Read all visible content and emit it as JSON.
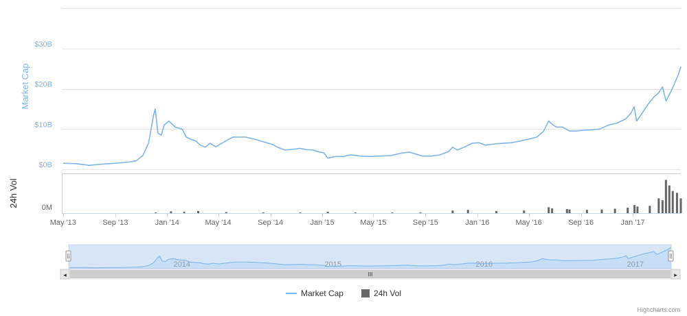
{
  "chart_data": {
    "type": "line",
    "colors": {
      "market_cap": "#7cb5ec",
      "volume": "#666666",
      "navigator_fill": "#d6e6f7",
      "grid": "#e6e6e6"
    },
    "market_cap": {
      "name": "Market Cap",
      "axis_label": "Market Cap",
      "unit": "USD billions",
      "y_ticks": [
        "$0B",
        "$10B",
        "$20B",
        "$30B"
      ],
      "y_tick_values": [
        0,
        10,
        20,
        30
      ],
      "ylim": [
        -0.5,
        40
      ],
      "x": [
        "2013-05-01",
        "2013-06-01",
        "2013-07-01",
        "2013-08-01",
        "2013-09-01",
        "2013-10-01",
        "2013-10-20",
        "2013-11-05",
        "2013-11-18",
        "2013-11-30",
        "2013-12-04",
        "2013-12-10",
        "2013-12-18",
        "2013-12-25",
        "2014-01-05",
        "2014-01-20",
        "2014-02-05",
        "2014-02-15",
        "2014-02-25",
        "2014-03-10",
        "2014-03-20",
        "2014-04-01",
        "2014-04-12",
        "2014-04-25",
        "2014-05-10",
        "2014-05-25",
        "2014-06-05",
        "2014-06-20",
        "2014-07-05",
        "2014-07-25",
        "2014-08-10",
        "2014-08-20",
        "2014-09-05",
        "2014-09-20",
        "2014-10-05",
        "2014-10-25",
        "2014-11-10",
        "2014-11-25",
        "2014-12-10",
        "2014-12-25",
        "2015-01-05",
        "2015-01-14",
        "2015-02-01",
        "2015-02-20",
        "2015-03-10",
        "2015-04-01",
        "2015-04-20",
        "2015-05-15",
        "2015-06-10",
        "2015-07-05",
        "2015-07-25",
        "2015-08-15",
        "2015-08-25",
        "2015-09-15",
        "2015-10-05",
        "2015-10-25",
        "2015-11-04",
        "2015-11-15",
        "2015-12-01",
        "2015-12-20",
        "2016-01-05",
        "2016-01-20",
        "2016-02-10",
        "2016-03-01",
        "2016-03-20",
        "2016-04-10",
        "2016-05-01",
        "2016-05-20",
        "2016-06-05",
        "2016-06-17",
        "2016-06-25",
        "2016-07-05",
        "2016-07-20",
        "2016-08-05",
        "2016-08-20",
        "2016-09-05",
        "2016-09-25",
        "2016-10-15",
        "2016-11-05",
        "2016-11-25",
        "2016-12-15",
        "2016-12-28",
        "2017-01-04",
        "2017-01-10",
        "2017-01-20",
        "2017-02-05",
        "2017-02-20",
        "2017-03-03",
        "2017-03-12",
        "2017-03-20",
        "2017-03-28",
        "2017-04-08",
        "2017-04-18",
        "2017-04-24"
      ],
      "values": [
        1.5,
        1.4,
        1.0,
        1.3,
        1.5,
        1.8,
        2.1,
        3.5,
        6.5,
        13.5,
        15.0,
        9.0,
        8.5,
        11.0,
        12.0,
        10.5,
        10.0,
        8.0,
        7.5,
        7.0,
        6.0,
        5.5,
        6.5,
        5.6,
        6.5,
        7.4,
        8.0,
        8.0,
        8.0,
        7.5,
        7.0,
        6.7,
        6.2,
        5.4,
        4.8,
        5.0,
        5.2,
        4.9,
        4.8,
        4.3,
        4.1,
        2.8,
        3.2,
        3.2,
        3.6,
        3.3,
        3.2,
        3.3,
        3.4,
        4.0,
        4.3,
        3.6,
        3.3,
        3.3,
        3.6,
        4.4,
        5.5,
        4.8,
        5.5,
        6.5,
        6.6,
        6.0,
        6.3,
        6.5,
        6.6,
        7.0,
        7.5,
        8.0,
        9.5,
        12.0,
        11.2,
        10.5,
        10.5,
        9.5,
        9.5,
        9.7,
        9.8,
        10.0,
        11.0,
        11.5,
        12.5,
        14.0,
        15.5,
        12.0,
        13.5,
        16.0,
        18.0,
        19.0,
        20.5,
        17.0,
        18.5,
        21.0,
        23.5,
        25.5
      ]
    },
    "volume": {
      "name": "24h Vol",
      "axis_label": "24h Vol",
      "y_ticks": [
        "0M"
      ],
      "x": [
        "2013-12-05",
        "2014-01-10",
        "2014-02-10",
        "2014-03-15",
        "2014-05-20",
        "2014-08-15",
        "2014-11-10",
        "2015-01-14",
        "2015-03-20",
        "2015-06-15",
        "2015-08-20",
        "2015-11-04",
        "2015-12-10",
        "2016-02-15",
        "2016-04-20",
        "2016-06-17",
        "2016-06-25",
        "2016-07-30",
        "2016-08-05",
        "2016-09-15",
        "2016-10-20",
        "2016-11-20",
        "2016-12-20",
        "2017-01-05",
        "2017-01-12",
        "2017-02-10",
        "2017-03-03",
        "2017-03-12",
        "2017-03-20",
        "2017-03-28",
        "2017-04-05",
        "2017-04-15",
        "2017-04-24"
      ],
      "values": [
        2,
        5,
        4,
        6,
        3,
        2,
        2,
        4,
        2,
        2,
        2,
        7,
        9,
        6,
        7,
        16,
        13,
        11,
        10,
        9,
        10,
        12,
        15,
        22,
        18,
        20,
        40,
        35,
        90,
        75,
        60,
        55,
        40
      ],
      "unit": "relative"
    },
    "x_axis": {
      "tick_labels": [
        "May '13",
        "Sep '13",
        "Jan '14",
        "May '14",
        "Sep '14",
        "Jan '15",
        "May '15",
        "Sep '15",
        "Jan '16",
        "May '16",
        "Sep '16",
        "Jan '17"
      ],
      "tick_dates": [
        "2013-05-01",
        "2013-09-01",
        "2014-01-01",
        "2014-05-01",
        "2014-09-01",
        "2015-01-01",
        "2015-05-01",
        "2015-09-01",
        "2016-01-01",
        "2016-05-01",
        "2016-09-01",
        "2017-01-01"
      ],
      "range": [
        "2013-04-28",
        "2017-04-24"
      ]
    },
    "navigator": {
      "year_labels": [
        "2014",
        "2015",
        "2016",
        "2017"
      ],
      "year_dates": [
        "2014-01-01",
        "2015-01-01",
        "2016-01-01",
        "2017-01-01"
      ],
      "scroll_left_arrow": "◂",
      "scroll_right_arrow": "▸",
      "scroll_grip": "III"
    },
    "legend": {
      "placement": "bottom-center"
    },
    "grid": true
  },
  "credits": "Highcharts.com"
}
